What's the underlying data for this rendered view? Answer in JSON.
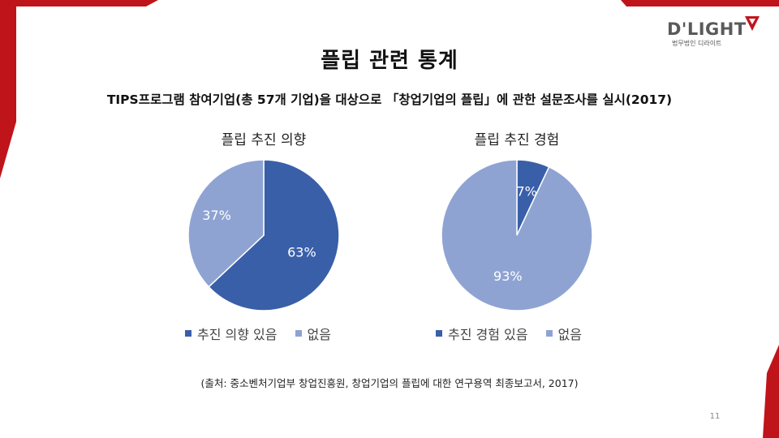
{
  "slide": {
    "title": "플립 관련 통계",
    "subtitle": "TIPS프로그램 참여기업(총 57개 기업)을 대상으로 「창업기업의 플립」에 관한 설문조사를 실시(2017)",
    "source": "(출처: 중소벤처기업부 창업진흥원, 창업기업의 플립에 대한 연구용역 최종보고서, 2017)",
    "page_number": "11",
    "accent_color": "#c0141b"
  },
  "logo": {
    "text": "D'LIGHT",
    "subtext": "법무법인 디라이트",
    "mark_color": "#c0141b"
  },
  "chart_data": [
    {
      "type": "pie",
      "title": "플립 추진 의향",
      "categories": [
        "추진 의향 있음",
        "없음"
      ],
      "values": [
        63,
        37
      ],
      "labels": [
        "63%",
        "37%"
      ],
      "colors": [
        "#3a5fa9",
        "#8fa3d3"
      ],
      "legend_position": "bottom"
    },
    {
      "type": "pie",
      "title": "플립 추진 경험",
      "categories": [
        "추진 경험 있음",
        "없음"
      ],
      "values": [
        7,
        93
      ],
      "labels": [
        "7%",
        "93%"
      ],
      "colors": [
        "#3a5fa9",
        "#8fa3d3"
      ],
      "legend_position": "bottom"
    }
  ]
}
